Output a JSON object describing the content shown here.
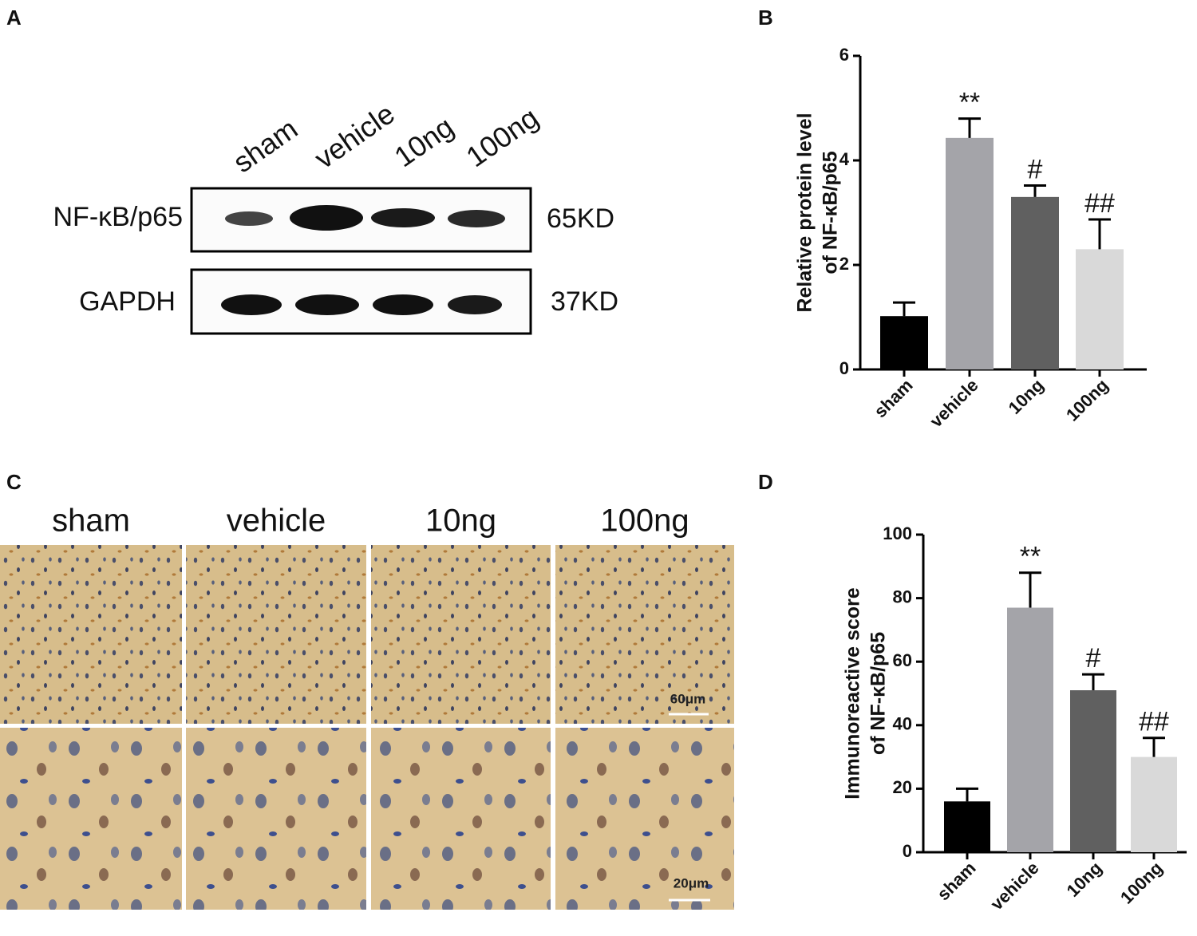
{
  "panel_labels": [
    "A",
    "B",
    "C",
    "D"
  ],
  "blot": {
    "lanes": [
      "sham",
      "vehicle",
      "10ng",
      "100ng"
    ],
    "rows": [
      {
        "protein": "NF-κB/p65",
        "size": "65KD"
      },
      {
        "protein": "GAPDH",
        "size": "37KD"
      }
    ]
  },
  "histology": {
    "columns": [
      "sham",
      "vehicle",
      "10ng",
      "100ng"
    ],
    "scale_bars": [
      "60μm",
      "20μm"
    ]
  },
  "chart_data": [
    {
      "type": "bar",
      "ylabel": [
        "Relative protein level",
        "of NF-κB/p65"
      ],
      "categories": [
        "sham",
        "vehicle",
        "10ng",
        "100ng"
      ],
      "values": [
        1.02,
        4.43,
        3.3,
        2.3
      ],
      "errors": [
        0.26,
        0.37,
        0.22,
        0.57
      ],
      "significance": [
        null,
        "**",
        "#",
        "##"
      ],
      "colors": [
        "#000000",
        "#a4a4a9",
        "#606060",
        "#d9d9d9"
      ],
      "ylim": [
        0,
        6
      ],
      "yticks": [
        0,
        2,
        4,
        6
      ]
    },
    {
      "type": "bar",
      "ylabel": [
        "Immunoreactive score",
        "of NF-κB/p65"
      ],
      "categories": [
        "sham",
        "vehicle",
        "10ng",
        "100ng"
      ],
      "values": [
        16,
        77,
        51,
        30
      ],
      "errors": [
        4,
        11,
        5,
        6
      ],
      "significance": [
        null,
        "**",
        "#",
        "##"
      ],
      "colors": [
        "#000000",
        "#a4a4a9",
        "#606060",
        "#d9d9d9"
      ],
      "ylim": [
        0,
        100
      ],
      "yticks": [
        0,
        20,
        40,
        60,
        80,
        100
      ]
    }
  ]
}
